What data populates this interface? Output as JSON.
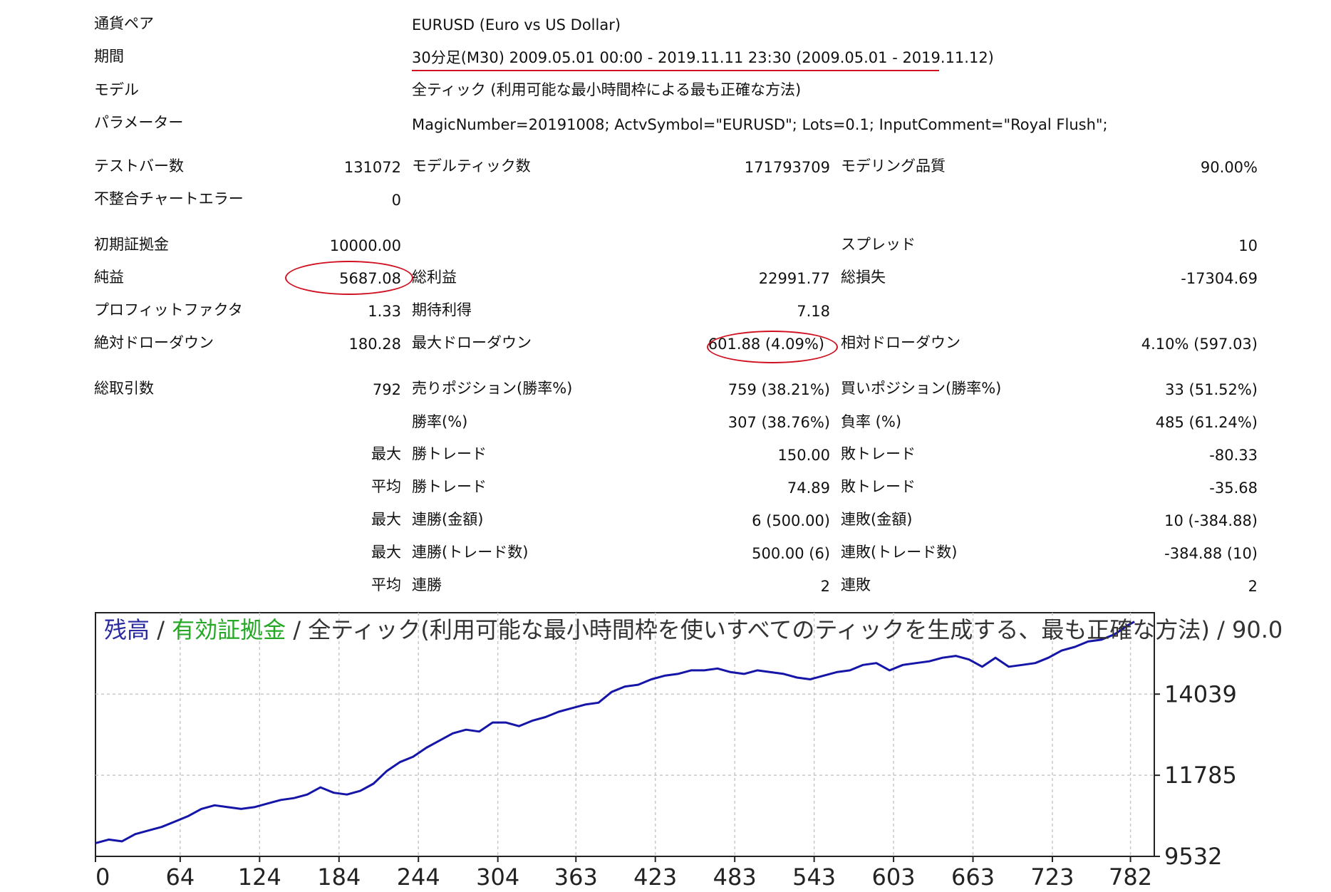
{
  "header": {
    "pair_label": "通貨ペア",
    "pair_value": "EURUSD (Euro vs US Dollar)",
    "period_label": "期間",
    "period_value": "30分足(M30) 2009.05.01 00:00 - 2019.11.11 23:30 (2009.05.01 - 2019.11.12)",
    "model_label": "モデル",
    "model_value": "全ティック (利用可能な最小時間枠による最も正確な方法)",
    "params_label": "パラメーター",
    "params_value": "MagicNumber=20191008; ActvSymbol=\"EURUSD\"; Lots=0.1; InputComment=\"Royal Flush\";"
  },
  "stats": {
    "bars_label": "テストバー数",
    "bars_value": "131072",
    "ticks_label": "モデルティック数",
    "ticks_value": "171793709",
    "quality_label": "モデリング品質",
    "quality_value": "90.00%",
    "mismatch_label": "不整合チャートエラー",
    "mismatch_value": "0",
    "deposit_label": "初期証拠金",
    "deposit_value": "10000.00",
    "spread_label": "スプレッド",
    "spread_value": "10",
    "net_label": "純益",
    "net_value": "5687.08",
    "gross_profit_label": "総利益",
    "gross_profit_value": "22991.77",
    "gross_loss_label": "総損失",
    "gross_loss_value": "-17304.69",
    "pf_label": "プロフィットファクタ",
    "pf_value": "1.33",
    "expected_label": "期待利得",
    "expected_value": "7.18",
    "abs_dd_label": "絶対ドローダウン",
    "abs_dd_value": "180.28",
    "max_dd_label": "最大ドローダウン",
    "max_dd_value": "601.88 (4.09%)",
    "rel_dd_label": "相対ドローダウン",
    "rel_dd_value": "4.10% (597.03)",
    "trades_label": "総取引数",
    "trades_value": "792",
    "short_label": "売りポジション(勝率%)",
    "short_value": "759 (38.21%)",
    "long_label": "買いポジション(勝率%)",
    "long_value": "33 (51.52%)",
    "win_label": "勝率(%)",
    "win_value": "307 (38.76%)",
    "loss_label": "負率 (%)",
    "loss_value": "485 (61.24%)",
    "max_prefix": "最大",
    "avg_prefix": "平均",
    "largest_win_label": "勝トレード",
    "largest_win_value": "150.00",
    "largest_loss_label": "敗トレード",
    "largest_loss_value": "-80.33",
    "avg_win_label": "勝トレード",
    "avg_win_value": "74.89",
    "avg_loss_label": "敗トレード",
    "avg_loss_value": "-35.68",
    "max_consec_win_label": "連勝(金額)",
    "max_consec_win_value": "6 (500.00)",
    "max_consec_loss_label": "連敗(金額)",
    "max_consec_loss_value": "10 (-384.88)",
    "max_consec_profit_label": "連勝(トレード数)",
    "max_consec_profit_value": "500.00 (6)",
    "max_consec_lossamt_label": "連敗(トレード数)",
    "max_consec_lossamt_value": "-384.88 (10)",
    "avg_consec_win_label": "連勝",
    "avg_consec_win_value": "2",
    "avg_consec_loss_label": "連敗",
    "avg_consec_loss_value": "2"
  },
  "chart_title": {
    "balance": "残高",
    "sep1": " / ",
    "equity": "有効証拠金",
    "rest": " / 全ティック(利用可能な最小時間枠を使いすべてのティックを生成する、最も正確な方法) / 90.0"
  },
  "colors": {
    "line": "#1515a8",
    "grid": "#c8c8c8",
    "axis": "#222222",
    "annotation": "#d01020"
  },
  "chart_data": {
    "type": "line",
    "title": "残高 / 有効証拠金 / 全ティック(利用可能な最小時間枠を使いすべてのティックを生成する、最も正確な方法) / 90.0",
    "xlabel": "",
    "ylabel": "",
    "xlim": [
      0,
      800
    ],
    "ylim": [
      9532,
      16300
    ],
    "x_ticks": [
      0,
      64,
      124,
      184,
      244,
      304,
      363,
      423,
      483,
      543,
      603,
      663,
      723,
      782
    ],
    "y_ticks": [
      9532,
      11785,
      14039
    ],
    "grid": true,
    "series": [
      {
        "x": [
          0,
          10,
          20,
          30,
          40,
          50,
          60,
          70,
          80,
          90,
          100,
          110,
          120,
          130,
          140,
          150,
          160,
          170,
          180,
          190,
          200,
          210,
          220,
          230,
          240,
          250,
          260,
          270,
          280,
          290,
          300,
          310,
          320,
          330,
          340,
          350,
          360,
          370,
          380,
          390,
          400,
          410,
          420,
          430,
          440,
          450,
          460,
          470,
          480,
          490,
          500,
          510,
          520,
          530,
          540,
          550,
          560,
          570,
          580,
          590,
          600,
          610,
          620,
          630,
          640,
          650,
          660,
          670,
          680,
          690,
          700,
          710,
          720,
          730,
          740,
          750,
          760,
          770,
          780,
          785
        ],
        "values": [
          9900,
          10000,
          9950,
          10150,
          10250,
          10350,
          10500,
          10650,
          10850,
          10950,
          10900,
          10850,
          10900,
          11000,
          11100,
          11150,
          11250,
          11450,
          11300,
          11250,
          11350,
          11550,
          11900,
          12150,
          12300,
          12550,
          12750,
          12950,
          13050,
          13000,
          13250,
          13250,
          13150,
          13300,
          13400,
          13550,
          13650,
          13750,
          13800,
          14100,
          14250,
          14300,
          14450,
          14550,
          14600,
          14700,
          14700,
          14750,
          14650,
          14600,
          14700,
          14650,
          14600,
          14500,
          14450,
          14550,
          14650,
          14700,
          14850,
          14900,
          14700,
          14850,
          14900,
          14950,
          15050,
          15100,
          15000,
          14800,
          15050,
          14800,
          14850,
          14900,
          15050,
          15250,
          15350,
          15500,
          15550,
          15700,
          15950,
          16050
        ]
      }
    ]
  }
}
